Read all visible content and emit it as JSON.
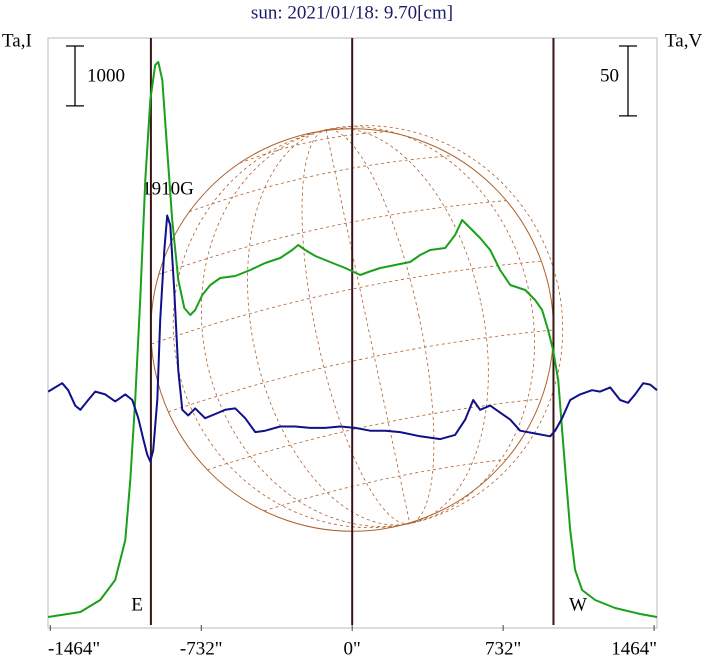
{
  "chart_data": {
    "type": "line",
    "title": "sun: 2021/01/18: 9.70[cm]",
    "y_label": "Ta,I",
    "y2_label": "Ta,V",
    "annotations": [
      "1910G",
      "E",
      "W"
    ],
    "xlim": [
      -1475,
      1478
    ],
    "xticks": [
      {
        "value": -1464,
        "label": "-1464\""
      },
      {
        "value": -732,
        "label": "-732\""
      },
      {
        "value": 0,
        "label": "0\""
      },
      {
        "value": 732,
        "label": "732\""
      },
      {
        "value": 1464,
        "label": "1464\""
      }
    ],
    "ylim": [
      0,
      9800
    ],
    "y2lim": [
      -210,
      210
    ],
    "y_scale_bar": 1000,
    "y2_scale_bar": 50,
    "vlines": [
      -976,
      0,
      976
    ],
    "vline_color": "#3a1414",
    "globe_color": "#b0602a",
    "series": [
      {
        "color": "#1aa01a",
        "x": [
          -1474,
          -1318,
          -1222,
          -1149,
          -1100,
          -1076,
          -1052,
          -1028,
          -1003,
          -979,
          -955,
          -940,
          -921,
          -897,
          -873,
          -843,
          -814,
          -785,
          -761,
          -727,
          -688,
          -640,
          -567,
          -494,
          -422,
          -349,
          -291,
          -262,
          -228,
          -179,
          -107,
          -34,
          39,
          78,
          136,
          208,
          281,
          330,
          378,
          451,
          499,
          533,
          572,
          620,
          669,
          717,
          766,
          839,
          887,
          921,
          950,
          974,
          999,
          1018,
          1037,
          1057,
          1081,
          1115,
          1178,
          1275,
          1396,
          1478
        ],
        "values": [
          134,
          217,
          417,
          751,
          1419,
          2421,
          3756,
          5426,
          7429,
          8765,
          9349,
          9399,
          9099,
          7930,
          6761,
          5760,
          5292,
          5175,
          5259,
          5509,
          5676,
          5793,
          5826,
          5927,
          6044,
          6127,
          6261,
          6344,
          6261,
          6161,
          6060,
          5960,
          5843,
          5893,
          5960,
          6010,
          6060,
          6177,
          6261,
          6294,
          6511,
          6761,
          6628,
          6461,
          6261,
          5927,
          5676,
          5593,
          5426,
          5259,
          4925,
          4591,
          4090,
          3255,
          2421,
          1586,
          918,
          584,
          417,
          284,
          184,
          134
        ]
      },
      {
        "color": "#10108a",
        "axis": "y2",
        "x": [
          -1474,
          -1440,
          -1406,
          -1377,
          -1343,
          -1318,
          -1280,
          -1246,
          -1197,
          -1149,
          -1100,
          -1066,
          -1037,
          -1013,
          -994,
          -979,
          -965,
          -945,
          -931,
          -911,
          -897,
          -882,
          -863,
          -843,
          -824,
          -795,
          -761,
          -713,
          -664,
          -616,
          -567,
          -519,
          -470,
          -422,
          -349,
          -276,
          -204,
          -131,
          -58,
          15,
          87,
          160,
          233,
          330,
          427,
          499,
          548,
          587,
          620,
          669,
          717,
          766,
          814,
          887,
          960,
          984,
          1018,
          1057,
          1105,
          1163,
          1202,
          1251,
          1299,
          1338,
          1372,
          1411,
          1445,
          1478
        ],
        "values": [
          -43,
          -40,
          -37,
          -42,
          -53,
          -56,
          -49,
          -43,
          -45,
          -50,
          -45,
          -49,
          -62,
          -77,
          -88,
          -93,
          -85,
          -49,
          8,
          58,
          83,
          76,
          30,
          -28,
          -56,
          -60,
          -55,
          -62,
          -59,
          -56,
          -55,
          -62,
          -72,
          -71,
          -68,
          -68,
          -69,
          -69,
          -68,
          -69,
          -71,
          -71,
          -72,
          -75,
          -77,
          -74,
          -63,
          -49,
          -56,
          -53,
          -58,
          -63,
          -71,
          -73,
          -75,
          -71,
          -62,
          -49,
          -45,
          -42,
          -43,
          -40,
          -49,
          -51,
          -45,
          -37,
          -38,
          -42
        ]
      }
    ]
  }
}
